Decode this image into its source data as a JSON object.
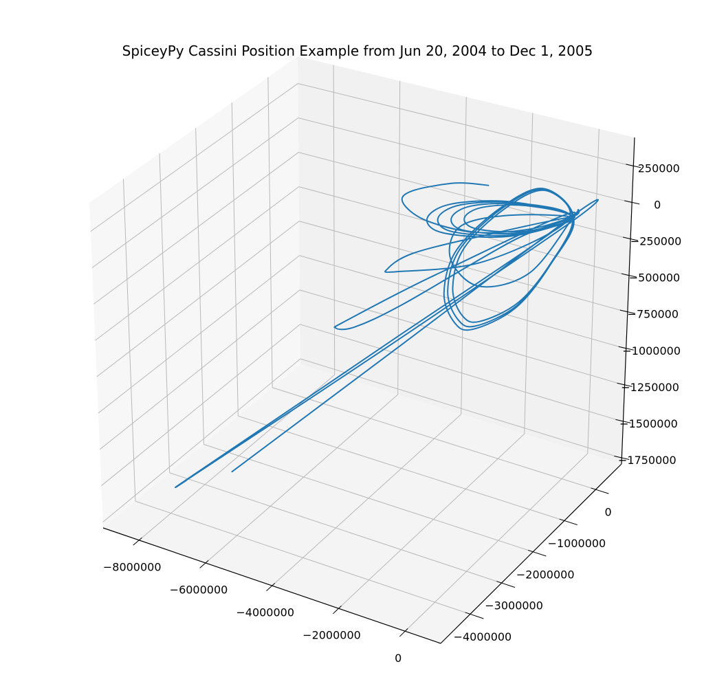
{
  "chart_data": {
    "type": "line3d",
    "title": "SpiceyPy Cassini Position Example from Jun 20, 2004 to Dec 1, 2005",
    "xlabel": "",
    "ylabel": "",
    "zlabel": "",
    "xlim": [
      -9080000,
      1070000
    ],
    "ylim": [
      -4940000,
      820000
    ],
    "zlim": [
      -1790000,
      447000
    ],
    "grid": true,
    "view": {
      "elev": 30,
      "azim": -60
    },
    "colors": {
      "line": "#1f77b4",
      "grid": "#b8b8b8",
      "pane_left": "#f7f7f7",
      "pane_back": "#f1f1f1",
      "pane_floor": "#f4f4f4",
      "axis": "#000000"
    },
    "x_ticks": [
      {
        "value": -8000000,
        "label": "−8000000"
      },
      {
        "value": -6000000,
        "label": "−6000000"
      },
      {
        "value": -4000000,
        "label": "−4000000"
      },
      {
        "value": -2000000,
        "label": "−2000000"
      },
      {
        "value": 0,
        "label": "0"
      }
    ],
    "y_ticks": [
      {
        "value": -4000000,
        "label": "−4000000"
      },
      {
        "value": -3000000,
        "label": "−3000000"
      },
      {
        "value": -2000000,
        "label": "−2000000"
      },
      {
        "value": -1000000,
        "label": "−1000000"
      },
      {
        "value": 0,
        "label": "0"
      }
    ],
    "z_ticks": [
      {
        "value": 250000,
        "label": "250000"
      },
      {
        "value": 0,
        "label": "0"
      },
      {
        "value": -250000,
        "label": "−250000"
      },
      {
        "value": -500000,
        "label": "−500000"
      },
      {
        "value": -750000,
        "label": "−750000"
      },
      {
        "value": -1000000,
        "label": "−1000000"
      },
      {
        "value": -1250000,
        "label": "−1250000"
      },
      {
        "value": -1500000,
        "label": "−1500000"
      },
      {
        "value": -1750000,
        "label": "−1750000"
      }
    ],
    "series": [
      {
        "points_xyz_km": [
          [
            -6630000.0,
            -3500000.0,
            -1500000.0
          ],
          [
            -3300000.0,
            -1650000.0,
            -750000.0
          ],
          [
            60000.0,
            190000.0,
            0
          ],
          [
            180000.0,
            -90000.0,
            0
          ],
          [
            -3550000.0,
            -2050000.0,
            -740000.0
          ],
          [
            -7300000.0,
            -4020000.0,
            -1480000.0
          ],
          [
            -7400000.0,
            -4100000.0,
            -1500000.0
          ],
          [
            -7280000.0,
            -4060000.0,
            -1470000.0
          ],
          [
            -3600000.0,
            -1980000.0,
            -730000.0
          ],
          [
            40000.0,
            110000.0,
            0
          ],
          [
            -1440000.0,
            -2470000.0,
            0
          ],
          [
            -2200000.0,
            -4410000.0,
            0
          ],
          [
            -2250000.0,
            -4720000.0,
            0
          ],
          [
            -1860000.0,
            -4550000.0,
            0
          ],
          [
            -1400000.0,
            -3550000.0,
            0
          ],
          [
            -630000.0,
            -1000000.0,
            0
          ],
          [
            110000.0,
            30000.0,
            0
          ],
          [
            -1470000.0,
            -1130000.0,
            0
          ],
          [
            -2560000.0,
            -2120000.0,
            0
          ],
          [
            -2700000.0,
            -2730000.0,
            0
          ],
          [
            -2420000.0,
            -2740000.0,
            0
          ],
          [
            -760000.0,
            -1840000.0,
            0
          ],
          [
            50000.0,
            -100000.0,
            0
          ],
          [
            -1360000.0,
            570000.0,
            0
          ],
          [
            -1790000.0,
            -250000.0,
            0
          ],
          [
            -1620000.0,
            -1670000.0,
            0
          ],
          [
            -780000.0,
            -2880000.0,
            0
          ],
          [
            180000.0,
            -3570000.0,
            0
          ],
          [
            760000.0,
            -3630000.0,
            0
          ],
          [
            1160000.0,
            -2780000.0,
            0
          ],
          [
            830000.0,
            -1410000.0,
            0
          ],
          [
            100000.0,
            0.0,
            0
          ],
          [
            -1310000.0,
            550000.0,
            0
          ],
          [
            -1720000.0,
            -240000.0,
            0
          ],
          [
            -1560000.0,
            -1600000.0,
            0
          ],
          [
            -750000.0,
            -2760000.0,
            0
          ],
          [
            170000.0,
            -3430000.0,
            0
          ],
          [
            730000.0,
            -3480000.0,
            0
          ],
          [
            1110000.0,
            -2670000.0,
            0
          ],
          [
            800000.0,
            -1350000.0,
            0
          ],
          [
            100000.0,
            20000.0,
            0
          ],
          [
            -1400000.0,
            590000.0,
            0
          ],
          [
            -1840000.0,
            -260000.0,
            0
          ],
          [
            -1670000.0,
            -1720000.0,
            0
          ],
          [
            -800000.0,
            -2970000.0,
            0
          ],
          [
            190000.0,
            -3680000.0,
            0
          ],
          [
            780000.0,
            -3740000.0,
            0
          ],
          [
            1190000.0,
            -2860000.0,
            0
          ],
          [
            850000.0,
            -1450000.0,
            0
          ],
          [
            100000.0,
            0.0,
            0
          ],
          [
            -1620000.0,
            0.0,
            0
          ],
          [
            -2840000.0,
            -450000.0,
            0
          ],
          [
            -2970000.0,
            -980000.0,
            0
          ],
          [
            -2250000.0,
            -1240000.0,
            0
          ],
          [
            -760000.0,
            -870000.0,
            0
          ],
          [
            100000.0,
            0.0,
            0
          ],
          [
            -1460000.0,
            0.0,
            0
          ],
          [
            -2560000.0,
            -400000.0,
            0
          ],
          [
            -2670000.0,
            -880000.0,
            0
          ],
          [
            -2030000.0,
            -1120000.0,
            0
          ],
          [
            -680000.0,
            -780000.0,
            0
          ],
          [
            100000.0,
            10000.0,
            0
          ],
          [
            -1750000.0,
            0.0,
            0
          ],
          [
            -3070000.0,
            -490000.0,
            0
          ],
          [
            -3210000.0,
            -1060000.0,
            0
          ],
          [
            -2430000.0,
            -1340000.0,
            0
          ],
          [
            -820000.0,
            -940000.0,
            0
          ],
          [
            100000.0,
            0.0,
            0
          ],
          [
            -1300000.0,
            0.0,
            0
          ],
          [
            -2270000.0,
            -360000.0,
            0
          ],
          [
            -2380000.0,
            -780000.0,
            0
          ],
          [
            -1800000.0,
            -990000.0,
            0
          ],
          [
            -610000.0,
            -700000.0,
            0
          ],
          [
            100000.0,
            0.0,
            0
          ],
          [
            -1440000.0,
            -390000.0,
            0
          ],
          [
            -2240000.0,
            -1050000.0,
            0
          ],
          [
            -1550000.0,
            -2010000.0,
            0
          ],
          [
            -190000.0,
            -2530000.0,
            0
          ],
          [
            590000.0,
            -1800000.0,
            0
          ],
          [
            100000.0,
            0.0,
            0
          ],
          [
            3000.0,
            250000.0,
            0
          ],
          [
            80000.0,
            50000.0,
            0
          ],
          [
            -590000.0,
            -620000.0,
            0
          ],
          [
            -1770000.0,
            -1100000.0,
            0
          ],
          [
            -3210000.0,
            -1120000.0,
            0
          ],
          [
            -4220000.0,
            -790000.0,
            0
          ],
          [
            -4330000.0,
            -410000.0,
            0
          ],
          [
            -3570000.0,
            120000.0,
            0
          ],
          [
            -2750000.0,
            290000.0,
            0
          ]
        ]
      }
    ]
  }
}
